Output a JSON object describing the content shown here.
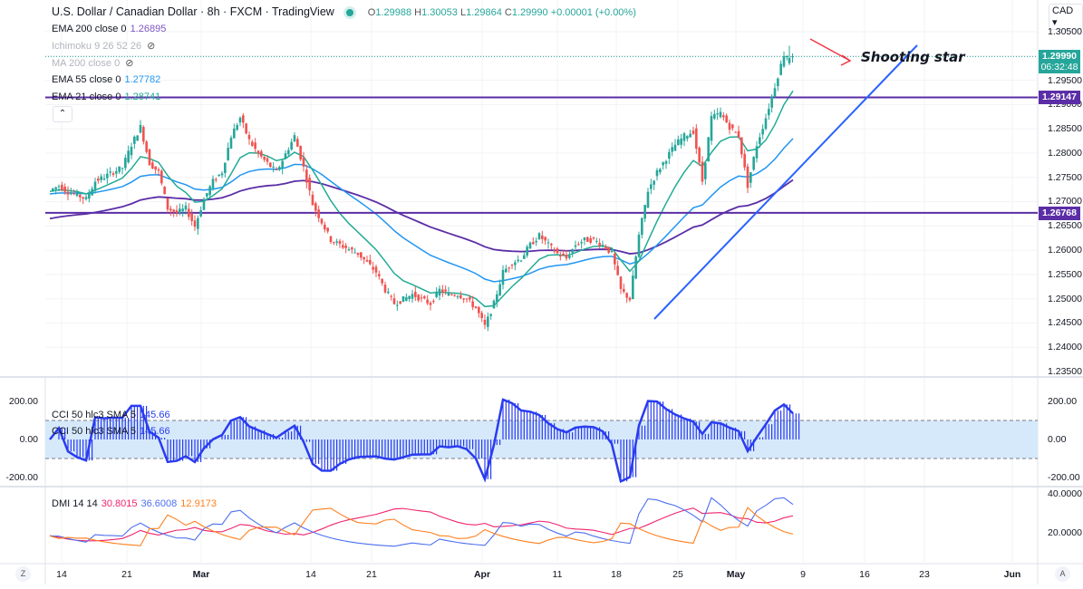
{
  "header": {
    "symbol": "U.S. Dollar / Canadian Dollar",
    "interval": "8h",
    "exchange": "FXCM",
    "source": "TradingView",
    "sep": "·",
    "o_label": "O",
    "o": "1.29988",
    "h_label": "H",
    "h": "1.30053",
    "l_label": "L",
    "l": "1.29864",
    "c_label": "C",
    "c": "1.29990",
    "change": "+0.00001 (+0.00%)"
  },
  "legends": {
    "ema200": {
      "label": "EMA 200 close 0",
      "value": "1.26895"
    },
    "ichimoku": {
      "label": "Ichimoku 9 26 52 26"
    },
    "ma200": {
      "label": "MA 200 close 0"
    },
    "ema55": {
      "label": "EMA 55 close 0",
      "value": "1.27782"
    },
    "ema21": {
      "label": "EMA 21 close 0",
      "value": "1.28741"
    },
    "cci1": {
      "label": "CCI 50 hlc3 SMA 5",
      "value": "145.66"
    },
    "cci2": {
      "label": "CCI 50 hlc3 SMA 5",
      "value": "145.66"
    },
    "dmi": {
      "label": "DMI 14 14",
      "adx": "30.8015",
      "plus": "36.6008",
      "minus": "12.9173"
    }
  },
  "currency": "CAD",
  "price_axis": [
    "1.30500",
    "1.29500",
    "1.29000",
    "1.28500",
    "1.28000",
    "1.27500",
    "1.27000",
    "1.26500",
    "1.26000",
    "1.25500",
    "1.25000",
    "1.24500",
    "1.24000",
    "1.23500"
  ],
  "price_tags": {
    "last": "1.29990",
    "countdown": "06:32:48",
    "level1": "1.29147",
    "level2": "1.26768"
  },
  "cci_axis": [
    "200.00",
    "0.00",
    "-200.00"
  ],
  "dmi_axis": [
    "40.0000",
    "20.0000"
  ],
  "time_axis": [
    "14",
    "21",
    "Mar",
    "14",
    "21",
    "Apr",
    "11",
    "18",
    "25",
    "May",
    "9",
    "16",
    "23",
    "Jun"
  ],
  "corner": {
    "left": "Z",
    "right": "A"
  },
  "annotation": "Shooting star",
  "colors": {
    "up": "#26a69a",
    "down": "#ef5350",
    "ema200": "#5b2ea6",
    "ema55": "#2196f3",
    "ema21": "#22ab94",
    "level": "#5b2ea6",
    "trend": "#2962ff",
    "cci": "#2a3cf0",
    "adx": "#f0236e",
    "plus": "#4c6ff0",
    "minus": "#ff7f1e"
  },
  "chart_data": {
    "type": "candlestick",
    "title": "U.S. Dollar / Canadian Dollar 8h",
    "ylim": [
      1.235,
      1.305
    ],
    "x_range": [
      "Feb 12",
      "May 10"
    ],
    "horizontal_levels": [
      1.29147,
      1.26768
    ],
    "closes": [
      1.2723,
      1.2733,
      1.272,
      1.2714,
      1.2705,
      1.2742,
      1.2751,
      1.2761,
      1.277,
      1.2817,
      1.2854,
      1.2779,
      1.2761,
      1.2686,
      1.2677,
      1.2686,
      1.2649,
      1.2705,
      1.2742,
      1.2761,
      1.2835,
      1.2873,
      1.2826,
      1.2798,
      1.2779,
      1.2761,
      1.2798,
      1.2835,
      1.277,
      1.2695,
      1.2658,
      1.2621,
      1.2611,
      1.2602,
      1.2593,
      1.2574,
      1.2555,
      1.2518,
      1.249,
      1.2499,
      1.2509,
      1.2499,
      1.249,
      1.2518,
      1.2509,
      1.2509,
      1.2499,
      1.2481,
      1.2443,
      1.249,
      1.2555,
      1.2574,
      1.2583,
      1.2611,
      1.263,
      1.2611,
      1.2593,
      1.2583,
      1.2611,
      1.2621,
      1.2621,
      1.2611,
      1.2593,
      1.2518,
      1.2499,
      1.263,
      1.2723,
      1.2761,
      1.2789,
      1.2817,
      1.2835,
      1.2845,
      1.2742,
      1.2873,
      1.2882,
      1.2854,
      1.2835,
      1.2733,
      1.2817,
      1.2873,
      1.2938,
      1.3003,
      1.2999
    ]
  }
}
